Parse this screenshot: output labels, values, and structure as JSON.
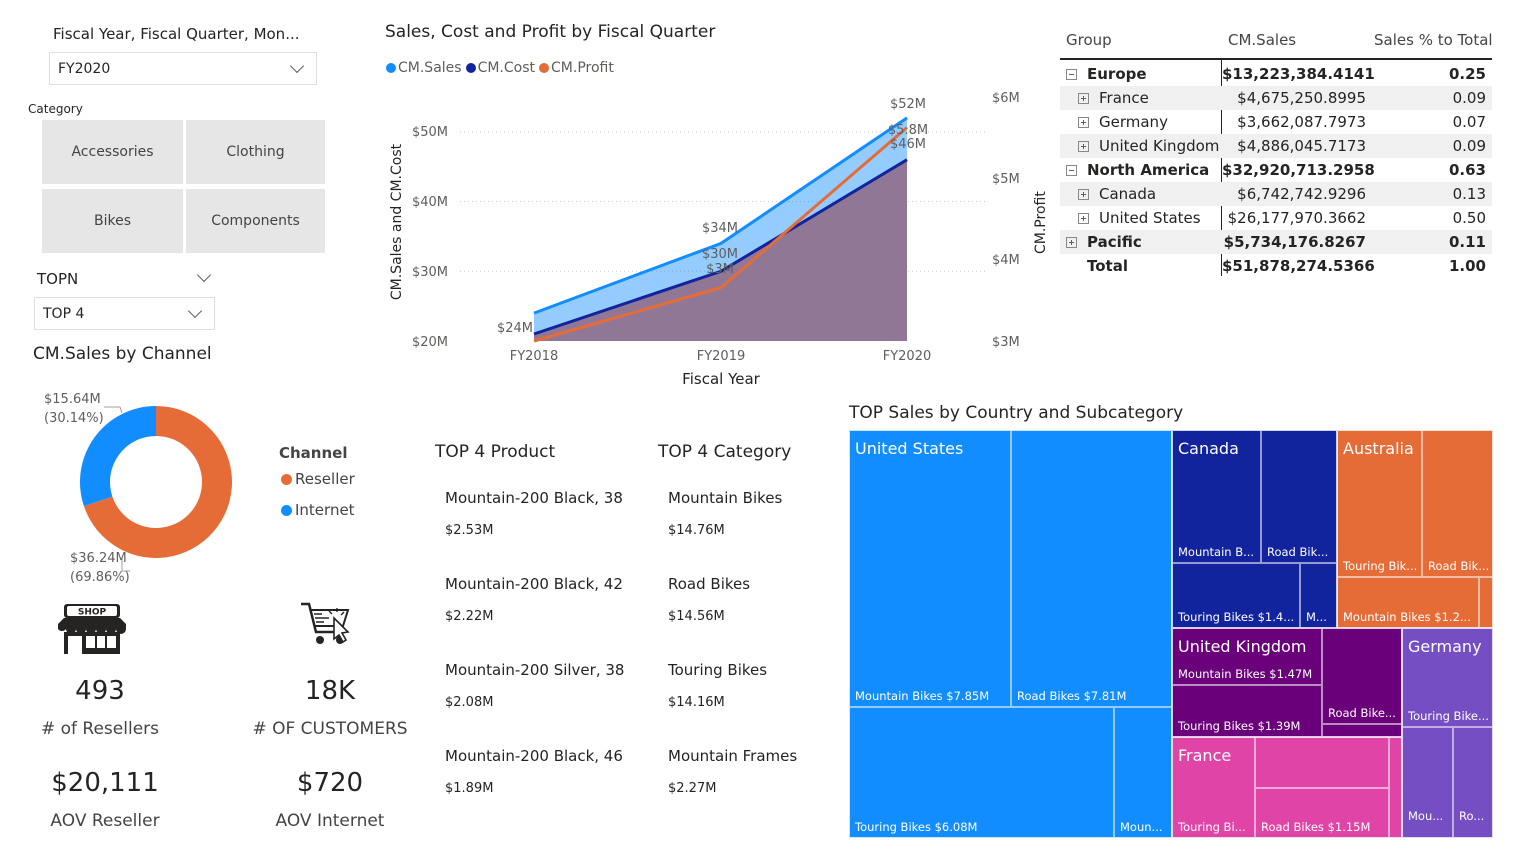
{
  "slicers": {
    "period_title": "Fiscal Year, Fiscal Quarter, Mon...",
    "period_value": "FY2020",
    "category_title": "Category",
    "category_tiles": [
      "Accessories",
      "Clothing",
      "Bikes",
      "Components"
    ],
    "topn_title": "TOPN",
    "topn_value": "TOP 4"
  },
  "colors": {
    "sales": "#118DFF",
    "cost": "#12239E",
    "profit": "#E66C37",
    "reseller": "#E66C37",
    "internet": "#118DFF"
  },
  "line_chart": {
    "title": "Sales, Cost and Profit by Fiscal Quarter",
    "legend": [
      "CM.Sales",
      "CM.Cost",
      "CM.Profit"
    ],
    "xlabel": "Fiscal Year",
    "ylabel_left": "CM.Sales and CM.Cost",
    "ylabel_right": "CM.Profit",
    "left_ticks": [
      "$50M",
      "$40M",
      "$30M",
      "$20M"
    ],
    "right_ticks": [
      "$6M",
      "$5M",
      "$4M",
      "$3M"
    ],
    "x_ticks": [
      "FY2018",
      "FY2019",
      "FY2020"
    ],
    "data_labels": [
      "$24M",
      "$34M",
      "$30M",
      "$3M",
      "$52M",
      "$5.8M",
      "$46M"
    ]
  },
  "chart_data": {
    "type": "area",
    "x": [
      "FY2018",
      "FY2019",
      "FY2020"
    ],
    "series": [
      {
        "name": "CM.Sales",
        "axis": "left",
        "values": [
          24,
          34,
          52
        ]
      },
      {
        "name": "CM.Cost",
        "axis": "left",
        "values": [
          21,
          30,
          46
        ]
      },
      {
        "name": "CM.Profit",
        "axis": "right",
        "values": [
          3.0,
          3.7,
          5.8
        ]
      }
    ],
    "ylim_left": [
      20,
      55
    ],
    "ylim_right": [
      3,
      6.2
    ],
    "xlabel": "Fiscal Year",
    "ylabel": "CM.Sales and CM.Cost",
    "y2label": "CM.Profit",
    "legend": "top-left",
    "grid": true
  },
  "matrix": {
    "headers": [
      "Group",
      "CM.Sales",
      "Sales % to Total"
    ],
    "rows": [
      {
        "group": "Europe",
        "sales": "$13,223,384.4141",
        "pct": "0.25",
        "level": 0,
        "box": "minus"
      },
      {
        "group": "France",
        "sales": "$4,675,250.8995",
        "pct": "0.09",
        "level": 1,
        "box": "plus"
      },
      {
        "group": "Germany",
        "sales": "$3,662,087.7973",
        "pct": "0.07",
        "level": 1,
        "box": "plus"
      },
      {
        "group": "United Kingdom",
        "sales": "$4,886,045.7173",
        "pct": "0.09",
        "level": 1,
        "box": "plus"
      },
      {
        "group": "North America",
        "sales": "$32,920,713.2958",
        "pct": "0.63",
        "level": 0,
        "box": "minus"
      },
      {
        "group": "Canada",
        "sales": "$6,742,742.9296",
        "pct": "0.13",
        "level": 1,
        "box": "plus"
      },
      {
        "group": "United States",
        "sales": "$26,177,970.3662",
        "pct": "0.50",
        "level": 1,
        "box": "plus"
      },
      {
        "group": "Pacific",
        "sales": "$5,734,176.8267",
        "pct": "0.11",
        "level": 0,
        "box": "plus"
      },
      {
        "group": "Total",
        "sales": "$51,878,274.5366",
        "pct": "1.00",
        "level": 0,
        "box": "none"
      }
    ]
  },
  "donut": {
    "title": "CM.Sales by Channel",
    "legend_title": "Channel",
    "legend": [
      "Reseller",
      "Internet"
    ],
    "slices": [
      {
        "name": "Reseller",
        "value": 36.24,
        "label": "$36.24M",
        "pct": "(69.86%)"
      },
      {
        "name": "Internet",
        "value": 15.64,
        "label": "$15.64M",
        "pct": "(30.14%)"
      }
    ]
  },
  "kpis": {
    "shop_sign": "SHOP",
    "resellers_value": "493",
    "resellers_label": "# of Resellers",
    "customers_value": "18K",
    "customers_label": "# OF CUSTOMERS",
    "aov_reseller_value": "$20,111",
    "aov_reseller_label": "AOV Reseller",
    "aov_internet_value": "$720",
    "aov_internet_label": "AOV Internet"
  },
  "top_products": {
    "title": "TOP 4 Product",
    "items": [
      {
        "name": "Mountain-200 Black, 38",
        "value": "$2.53M"
      },
      {
        "name": "Mountain-200 Black, 42",
        "value": "$2.22M"
      },
      {
        "name": "Mountain-200 Silver, 38",
        "value": "$2.08M"
      },
      {
        "name": "Mountain-200 Black, 46",
        "value": "$1.89M"
      }
    ]
  },
  "top_categories": {
    "title": "TOP 4 Category",
    "items": [
      {
        "name": "Mountain Bikes",
        "value": "$14.76M"
      },
      {
        "name": "Road Bikes",
        "value": "$14.56M"
      },
      {
        "name": "Touring Bikes",
        "value": "$14.16M"
      },
      {
        "name": "Mountain Frames",
        "value": "$2.27M"
      }
    ]
  },
  "treemap": {
    "title": "TOP Sales by Country and Subcategory",
    "countries": [
      "United States",
      "Canada",
      "Australia",
      "United Kingdom",
      "Germany",
      "France"
    ],
    "labels": {
      "us_mountain": "Mountain Bikes $7.85M",
      "us_road": "Road Bikes $7.81M",
      "us_touring": "Touring Bikes $6.08M",
      "us_more": "Moun...",
      "ca_mountain": "Mountain B...",
      "ca_road": "Road Bik...",
      "ca_touring": "Touring Bikes $1.4...",
      "ca_more": "M...",
      "au_touring": "Touring Bik...",
      "au_road": "Road Bik...",
      "au_mountain": "Mountain Bikes $1.2...",
      "uk_mountain": "Mountain Bikes $1.47M",
      "uk_touring": "Touring Bikes $1.39M",
      "uk_road": "Road Bike...",
      "de_touring": "Touring Bike...",
      "de_mountain": "Mou...",
      "de_road": "Ro...",
      "fr_touring": "Touring Bi...",
      "fr_road": "Road Bikes $1.15M"
    }
  }
}
